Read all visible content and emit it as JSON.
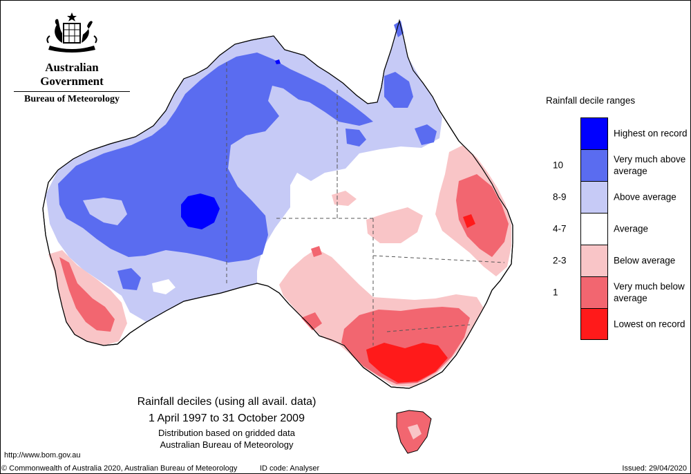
{
  "header": {
    "government": "Australian Government",
    "bureau": "Bureau of Meteorology"
  },
  "legend": {
    "title": "Rainfall decile ranges",
    "items": [
      {
        "range": "",
        "label": "Highest on record",
        "color": "#0000ff"
      },
      {
        "range": "10",
        "label": "Very much above average",
        "color": "#5a6cf0"
      },
      {
        "range": "8-9",
        "label": "Above average",
        "color": "#c6caf6"
      },
      {
        "range": "4-7",
        "label": "Average",
        "color": "#ffffff"
      },
      {
        "range": "2-3",
        "label": "Below average",
        "color": "#f9c5c7"
      },
      {
        "range": "1",
        "label": "Very much below average",
        "color": "#f26670"
      },
      {
        "range": "",
        "label": "Lowest on record",
        "color": "#ff1a1a"
      }
    ]
  },
  "captions": {
    "title": "Rainfall deciles (using all avail. data)",
    "period": "1 April 1997 to 31 October 2009",
    "line3": "Distribution based on gridded data",
    "line4": "Australian Bureau of Meteorology"
  },
  "url": "http://www.bom.gov.au",
  "footer": {
    "copyright": "© Commonwealth of Australia 2020, Australian Bureau of Meteorology",
    "id_code": "ID code: Analyser",
    "issued": "Issued: 29/04/2020"
  },
  "map_colors": {
    "outline": "#000000",
    "boundary": "#555555"
  }
}
